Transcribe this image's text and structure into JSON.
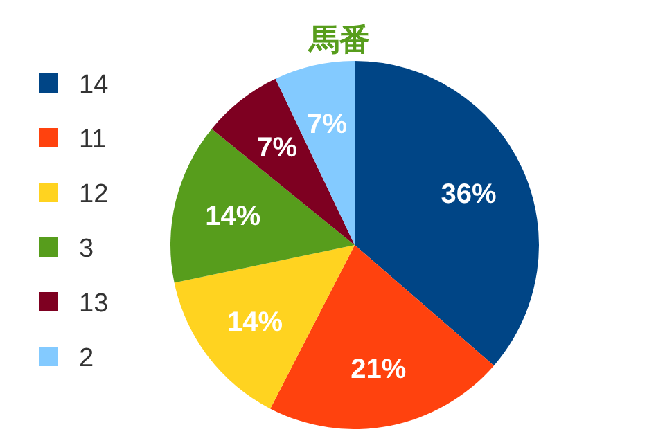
{
  "chart_data": {
    "type": "pie",
    "title": "馬番",
    "categories": [
      "14",
      "11",
      "12",
      "3",
      "13",
      "2"
    ],
    "values": [
      36,
      21,
      14,
      14,
      7,
      7
    ],
    "colors": [
      "#004586",
      "#ff420e",
      "#ffd320",
      "#579d1c",
      "#7e0021",
      "#83caff"
    ],
    "value_labels": [
      "36%",
      "21%",
      "14%",
      "14%",
      "7%",
      "7%"
    ],
    "legend": "left"
  }
}
